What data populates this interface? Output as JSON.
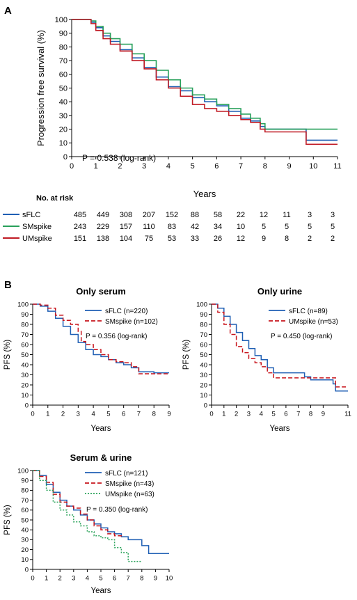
{
  "panel_a_label": "A",
  "panel_b_label": "B",
  "colors": {
    "sflc": "#1f5fb4",
    "smspike": "#27a05a",
    "umspike": "#c01a24",
    "smspike_b": "#c8141c",
    "umspike_b": "#2aa35a"
  },
  "chart_data": [
    {
      "type": "line",
      "id": "A",
      "title": "",
      "xlabel": "Years",
      "ylabel": "Progression free survival (%)",
      "xlim": [
        0,
        11
      ],
      "ylim": [
        0,
        100
      ],
      "xticks": [
        0,
        1,
        2,
        3,
        4,
        5,
        6,
        7,
        8,
        9,
        10,
        11
      ],
      "yticks": [
        0,
        10,
        20,
        30,
        40,
        50,
        60,
        70,
        80,
        90,
        100
      ],
      "annotation": "P = 0.538 (log-rank)",
      "series": [
        {
          "name": "sFLC",
          "x": [
            0,
            0.6,
            0.8,
            1,
            1.3,
            1.6,
            2,
            2.5,
            3,
            3.5,
            4,
            4.5,
            5,
            5.5,
            6,
            6.5,
            7,
            7.4,
            7.8,
            8,
            9.7,
            10,
            11
          ],
          "y": [
            100,
            100,
            98,
            94,
            88,
            84,
            78,
            72,
            65,
            58,
            51,
            48,
            43,
            40,
            37,
            33,
            28,
            26,
            22,
            20,
            12,
            12,
            12
          ]
        },
        {
          "name": "SMspike",
          "x": [
            0,
            0.6,
            0.8,
            1,
            1.3,
            1.6,
            2,
            2.5,
            3,
            3.5,
            4,
            4.5,
            5,
            5.5,
            6,
            6.5,
            7,
            7.4,
            7.8,
            8,
            9.7,
            10,
            11
          ],
          "y": [
            100,
            100,
            99,
            95,
            90,
            86,
            82,
            75,
            70,
            63,
            56,
            50,
            45,
            42,
            38,
            35,
            31,
            28,
            24,
            20,
            20,
            20,
            20
          ]
        },
        {
          "name": "UMspike",
          "x": [
            0,
            0.6,
            0.8,
            1,
            1.3,
            1.6,
            2,
            2.5,
            3,
            3.5,
            4,
            4.5,
            5,
            5.5,
            6,
            6.5,
            7,
            7.4,
            7.8,
            8,
            9.7,
            10,
            11
          ],
          "y": [
            100,
            100,
            97,
            92,
            86,
            82,
            77,
            70,
            64,
            56,
            50,
            44,
            38,
            35,
            33,
            30,
            27,
            25,
            20,
            18,
            9,
            9,
            9
          ]
        }
      ],
      "risk_table": {
        "title": "No. at risk",
        "rows": [
          {
            "name": "sFLC",
            "values": [
              "485",
              "449",
              "308",
              "207",
              "152",
              "88",
              "58",
              "22",
              "12",
              "11",
              "3",
              "3"
            ]
          },
          {
            "name": "SMspike",
            "values": [
              "243",
              "229",
              "157",
              "110",
              "83",
              "42",
              "34",
              "10",
              "5",
              "5",
              "5",
              "5"
            ]
          },
          {
            "name": "UMspike",
            "values": [
              "151",
              "138",
              "104",
              "75",
              "53",
              "33",
              "26",
              "12",
              "9",
              "8",
              "2",
              "2"
            ]
          }
        ]
      }
    },
    {
      "type": "line",
      "id": "B1",
      "title": "Only serum",
      "xlabel": "Years",
      "ylabel": "PFS (%)",
      "xlim": [
        0,
        9
      ],
      "ylim": [
        0,
        100
      ],
      "xticks": [
        0,
        1,
        2,
        3,
        4,
        5,
        6,
        7,
        8,
        9
      ],
      "yticks": [
        0,
        10,
        20,
        30,
        40,
        50,
        60,
        70,
        80,
        90,
        100
      ],
      "annotation": "P = 0.356 (log-rank)",
      "series": [
        {
          "name": "sFLC (n=220)",
          "x": [
            0,
            0.5,
            1,
            1.5,
            2,
            2.5,
            3,
            3.5,
            4,
            4.5,
            5,
            5.5,
            6,
            6.5,
            7,
            8,
            9
          ],
          "y": [
            100,
            98,
            93,
            86,
            78,
            70,
            62,
            55,
            50,
            48,
            45,
            42,
            40,
            37,
            33,
            32,
            32
          ]
        },
        {
          "name": "SMspike (n=102)",
          "x": [
            0,
            0.5,
            1,
            1.5,
            2,
            2.5,
            3,
            3.2,
            3.5,
            4,
            4.5,
            5,
            5.5,
            6,
            6.5,
            7,
            8,
            9
          ],
          "y": [
            100,
            99,
            96,
            89,
            84,
            80,
            73,
            63,
            60,
            55,
            50,
            45,
            43,
            42,
            38,
            31,
            31,
            31
          ]
        }
      ]
    },
    {
      "type": "line",
      "id": "B2",
      "title": "Only urine",
      "xlabel": "Years",
      "ylabel": "PFS (%)",
      "xlim": [
        0,
        11
      ],
      "ylim": [
        0,
        100
      ],
      "xticks": [
        0,
        1,
        2,
        3,
        4,
        5,
        6,
        7,
        8,
        9,
        11
      ],
      "yticks": [
        0,
        10,
        20,
        30,
        40,
        50,
        60,
        70,
        80,
        90,
        100
      ],
      "annotation": "P = 0.450 (log-rank)",
      "series": [
        {
          "name": "sFLC (n=89)",
          "x": [
            0,
            0.5,
            1,
            1.5,
            2,
            2.5,
            3,
            3.5,
            4,
            4.5,
            5,
            6,
            7,
            7.5,
            8,
            9.8,
            10,
            11
          ],
          "y": [
            100,
            96,
            88,
            80,
            72,
            64,
            56,
            49,
            45,
            37,
            32,
            32,
            32,
            28,
            25,
            21,
            14,
            14
          ]
        },
        {
          "name": "UMspike (n=53)",
          "x": [
            0,
            0.5,
            1,
            1.5,
            2,
            2.5,
            3,
            3.5,
            4,
            4.5,
            5,
            6,
            7,
            8,
            9,
            10,
            11
          ],
          "y": [
            100,
            92,
            80,
            70,
            58,
            52,
            46,
            42,
            38,
            32,
            27,
            27,
            27,
            27,
            27,
            18,
            18
          ]
        }
      ]
    },
    {
      "type": "line",
      "id": "B3",
      "title": "Serum & urine",
      "xlabel": "Years",
      "ylabel": "PFS (%)",
      "xlim": [
        0,
        10
      ],
      "ylim": [
        0,
        100
      ],
      "xticks": [
        0,
        1,
        2,
        3,
        4,
        5,
        6,
        7,
        8,
        9,
        10
      ],
      "yticks": [
        0,
        10,
        20,
        30,
        40,
        50,
        60,
        70,
        80,
        90,
        100
      ],
      "annotation": "P = 0.350 (log-rank)",
      "series": [
        {
          "name": "sFLC (n=121)",
          "x": [
            0,
            0.5,
            1,
            1.5,
            2,
            2.5,
            3,
            3.5,
            4,
            4.5,
            5,
            5.5,
            6,
            6.5,
            7,
            8,
            8.5,
            10
          ],
          "y": [
            100,
            95,
            86,
            78,
            70,
            64,
            60,
            55,
            50,
            46,
            42,
            38,
            36,
            33,
            30,
            24,
            16,
            16
          ]
        },
        {
          "name": "SMspike (n=43)",
          "x": [
            0,
            0.5,
            1,
            1.5,
            2,
            2.5,
            3,
            3.5,
            4,
            4.5,
            5,
            5.5,
            6,
            6.5
          ],
          "y": [
            100,
            94,
            88,
            76,
            68,
            64,
            62,
            56,
            50,
            44,
            40,
            36,
            34,
            32
          ]
        },
        {
          "name": "UMspike (n=63)",
          "x": [
            0,
            0.5,
            1,
            1.5,
            2,
            2.5,
            3,
            3.5,
            4,
            4.5,
            5,
            5.5,
            6,
            6.5,
            7,
            8
          ],
          "y": [
            100,
            90,
            80,
            68,
            60,
            55,
            48,
            44,
            38,
            34,
            32,
            30,
            22,
            17,
            8,
            8
          ]
        }
      ]
    }
  ]
}
